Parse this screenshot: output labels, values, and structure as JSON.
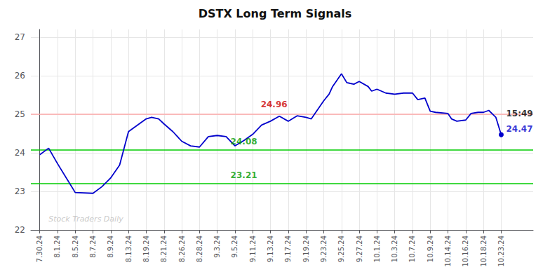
{
  "chart_data": {
    "type": "line",
    "title": "DSTX Long Term Signals",
    "x": [
      0,
      0.5,
      1,
      2,
      3,
      3.5,
      4,
      4.5,
      5,
      5.3,
      6,
      6.3,
      6.7,
      7,
      7.5,
      8,
      8.5,
      9,
      9.5,
      10,
      10.5,
      11,
      11.5,
      12,
      12.5,
      13,
      13.5,
      14,
      14.5,
      15,
      15.3,
      16,
      16.3,
      16.5,
      17,
      17.3,
      17.5,
      17.7,
      18,
      18.5,
      18.7,
      19,
      19.5,
      20,
      20.5,
      21,
      21.3,
      21.7,
      22,
      22.3,
      23,
      23.2,
      23.5,
      24,
      24.3,
      24.7,
      25,
      25.3,
      25.7,
      26
    ],
    "values": [
      23.95,
      24.12,
      23.72,
      22.97,
      22.95,
      23.12,
      23.35,
      23.68,
      24.55,
      24.65,
      24.88,
      24.92,
      24.88,
      24.75,
      24.55,
      24.3,
      24.18,
      24.15,
      24.42,
      24.45,
      24.42,
      24.18,
      24.32,
      24.48,
      24.72,
      24.82,
      24.95,
      24.82,
      24.96,
      24.92,
      24.88,
      25.35,
      25.52,
      25.72,
      26.05,
      25.82,
      25.8,
      25.78,
      25.85,
      25.72,
      25.6,
      25.65,
      25.55,
      25.52,
      25.55,
      25.55,
      25.38,
      25.42,
      25.08,
      25.05,
      25.02,
      24.88,
      24.82,
      24.85,
      25.02,
      25.05,
      25.05,
      25.1,
      24.92,
      24.47
    ],
    "color": "#0000cc",
    "xlim": [
      -0.5,
      27.8
    ],
    "xticks": [
      {
        "value": 0,
        "label": "7.30.24"
      },
      {
        "value": 1,
        "label": "8.1.24"
      },
      {
        "value": 2,
        "label": "8.5.24"
      },
      {
        "value": 3,
        "label": "8.7.24"
      },
      {
        "value": 4,
        "label": "8.9.24"
      },
      {
        "value": 5,
        "label": "8.13.24"
      },
      {
        "value": 6,
        "label": "8.19.24"
      },
      {
        "value": 7,
        "label": "8.21.24"
      },
      {
        "value": 8,
        "label": "8.26.24"
      },
      {
        "value": 9,
        "label": "8.28.24"
      },
      {
        "value": 10,
        "label": "9.3.24"
      },
      {
        "value": 11,
        "label": "9.5.24"
      },
      {
        "value": 12,
        "label": "9.11.24"
      },
      {
        "value": 13,
        "label": "9.13.24"
      },
      {
        "value": 14,
        "label": "9.17.24"
      },
      {
        "value": 15,
        "label": "9.19.24"
      },
      {
        "value": 16,
        "label": "9.23.24"
      },
      {
        "value": 17,
        "label": "9.25.24"
      },
      {
        "value": 18,
        "label": "9.27.24"
      },
      {
        "value": 19,
        "label": "10.1.24"
      },
      {
        "value": 20,
        "label": "10.3.24"
      },
      {
        "value": 21,
        "label": "10.7.24"
      },
      {
        "value": 22,
        "label": "10.9.24"
      },
      {
        "value": 23,
        "label": "10.14.24"
      },
      {
        "value": 24,
        "label": "10.16.24"
      },
      {
        "value": 25,
        "label": "10.18.24"
      },
      {
        "value": 26,
        "label": "10.23.24"
      }
    ],
    "ylim": [
      22.0,
      27.2
    ],
    "yticks": [
      22,
      23,
      24,
      25,
      26,
      27
    ],
    "grid": true,
    "reference_lines": [
      {
        "y": 25.0,
        "color": "#ffaaaa"
      },
      {
        "y": 24.08,
        "color": "#00cc00"
      },
      {
        "y": 23.21,
        "color": "#00cc00"
      }
    ],
    "annotations": [
      {
        "text": "24.96",
        "x": 13.2,
        "y": 25.12,
        "color": "#cc0000"
      },
      {
        "text": "24.08",
        "x": 11.5,
        "y": 24.17,
        "color": "#009900"
      },
      {
        "text": "23.21",
        "x": 11.5,
        "y": 23.3,
        "color": "#009900"
      },
      {
        "text": "15:49",
        "x": 26.2,
        "y": 25.02,
        "color": "#000000"
      },
      {
        "text": "24.47",
        "x": 26.2,
        "y": 24.62,
        "color": "#0000cc"
      }
    ],
    "watermark": {
      "text": "Stock Traders Daily",
      "x": 0.5,
      "y": 22.18,
      "color": "#bbbbbb"
    }
  }
}
